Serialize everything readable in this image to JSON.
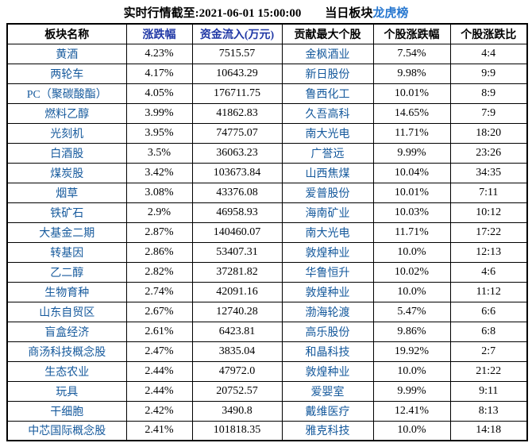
{
  "title": {
    "timestamp_text": "实时行情截至:2021-06-01 15:00:00",
    "daily_sector_label": "当日板块",
    "dragon_tiger_link": "龙虎榜"
  },
  "colors": {
    "cell_link_blue": "#15599c",
    "sortable_header_blue": "#2139a6",
    "title_link_blue": "#2878d0",
    "border_black": "#000000",
    "text_black": "#000000",
    "background": "#ffffff"
  },
  "table": {
    "headers": [
      {
        "label": "板块名称",
        "sortable": false
      },
      {
        "label": "涨跌幅",
        "sortable": true
      },
      {
        "label": "资金流入(万元)",
        "sortable": true
      },
      {
        "label": "贡献最大个股",
        "sortable": false
      },
      {
        "label": "个股涨跌幅",
        "sortable": false
      },
      {
        "label": "个股涨跌比",
        "sortable": false
      }
    ],
    "rows": [
      {
        "sector": "黄酒",
        "change": "4.23%",
        "inflow": "7515.57",
        "stock": "金枫酒业",
        "stock_change": "7.54%",
        "ratio": "4:4"
      },
      {
        "sector": "两轮车",
        "change": "4.17%",
        "inflow": "10643.29",
        "stock": "新日股份",
        "stock_change": "9.98%",
        "ratio": "9:9"
      },
      {
        "sector": "PC（聚碳酸酯）",
        "change": "4.05%",
        "inflow": "176711.75",
        "stock": "鲁西化工",
        "stock_change": "10.01%",
        "ratio": "8:9"
      },
      {
        "sector": "燃料乙醇",
        "change": "3.99%",
        "inflow": "41862.83",
        "stock": "久吾高科",
        "stock_change": "14.65%",
        "ratio": "7:9"
      },
      {
        "sector": "光刻机",
        "change": "3.95%",
        "inflow": "74775.07",
        "stock": "南大光电",
        "stock_change": "11.71%",
        "ratio": "18:20"
      },
      {
        "sector": "白酒股",
        "change": "3.5%",
        "inflow": "36063.23",
        "stock": "广誉远",
        "stock_change": "9.99%",
        "ratio": "23:26"
      },
      {
        "sector": "煤炭股",
        "change": "3.42%",
        "inflow": "103673.84",
        "stock": "山西焦煤",
        "stock_change": "10.04%",
        "ratio": "34:35"
      },
      {
        "sector": "烟草",
        "change": "3.08%",
        "inflow": "43376.08",
        "stock": "爱普股份",
        "stock_change": "10.01%",
        "ratio": "7:11"
      },
      {
        "sector": "铁矿石",
        "change": "2.9%",
        "inflow": "46958.93",
        "stock": "海南矿业",
        "stock_change": "10.03%",
        "ratio": "10:12"
      },
      {
        "sector": "大基金二期",
        "change": "2.87%",
        "inflow": "140460.07",
        "stock": "南大光电",
        "stock_change": "11.71%",
        "ratio": "17:22"
      },
      {
        "sector": "转基因",
        "change": "2.86%",
        "inflow": "53407.31",
        "stock": "敦煌种业",
        "stock_change": "10.0%",
        "ratio": "12:13"
      },
      {
        "sector": "乙二醇",
        "change": "2.82%",
        "inflow": "37281.82",
        "stock": "华鲁恒升",
        "stock_change": "10.02%",
        "ratio": "4:6"
      },
      {
        "sector": "生物育种",
        "change": "2.74%",
        "inflow": "42091.16",
        "stock": "敦煌种业",
        "stock_change": "10.0%",
        "ratio": "11:12"
      },
      {
        "sector": "山东自贸区",
        "change": "2.67%",
        "inflow": "12740.28",
        "stock": "渤海轮渡",
        "stock_change": "5.47%",
        "ratio": "6:6"
      },
      {
        "sector": "盲盒经济",
        "change": "2.61%",
        "inflow": "6423.81",
        "stock": "高乐股份",
        "stock_change": "9.86%",
        "ratio": "6:8"
      },
      {
        "sector": "商汤科技概念股",
        "change": "2.47%",
        "inflow": "3835.04",
        "stock": "和晶科技",
        "stock_change": "19.92%",
        "ratio": "2:7"
      },
      {
        "sector": "生态农业",
        "change": "2.44%",
        "inflow": "47972.0",
        "stock": "敦煌种业",
        "stock_change": "10.0%",
        "ratio": "21:22"
      },
      {
        "sector": "玩具",
        "change": "2.44%",
        "inflow": "20752.57",
        "stock": "爱婴室",
        "stock_change": "9.99%",
        "ratio": "9:11"
      },
      {
        "sector": "干细胞",
        "change": "2.42%",
        "inflow": "3490.8",
        "stock": "戴维医疗",
        "stock_change": "12.41%",
        "ratio": "8:13"
      },
      {
        "sector": "中芯国际概念股",
        "change": "2.41%",
        "inflow": "101818.35",
        "stock": "雅克科技",
        "stock_change": "10.0%",
        "ratio": "14:18"
      }
    ]
  }
}
